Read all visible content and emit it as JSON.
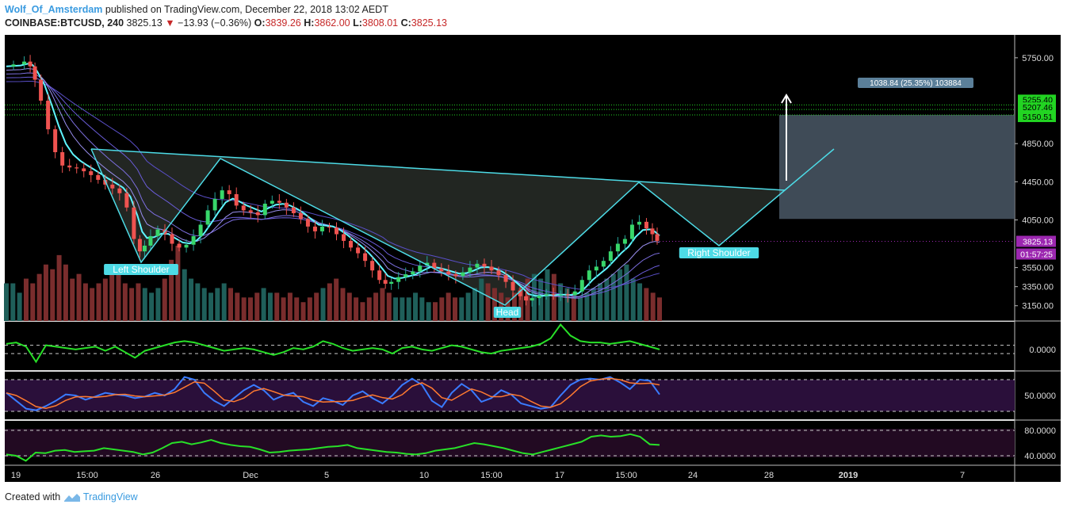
{
  "header": {
    "author": "Wolf_Of_Amsterdam",
    "published_text": "published on TradingView.com, December 22, 2018 13:02 AEDT",
    "symbol": "COINBASE:BTCUSD",
    "interval": "240",
    "last": "3825.13",
    "change": "−13.93 (−0.36%)",
    "open_label": "O:",
    "open": "3839.26",
    "high_label": "H:",
    "high": "3862.00",
    "low_label": "L:",
    "low": "3808.01",
    "close_label": "C:",
    "close": "3825.13"
  },
  "footer": {
    "created_with": "Created with",
    "brand": "TradingView"
  },
  "colors": {
    "up": "#26a69a",
    "down": "#ef5350",
    "pattern": "#4ddbe6",
    "ema_fast": "#5ff5ff",
    "osc_line": "#28e028",
    "stoch_k": "#3a7bff",
    "stoch_d": "#ff7a30",
    "target_box": "#4a5866",
    "price_label": "#9c27b0",
    "level_label": "#22d422"
  },
  "chart_data": {
    "type": "candlestick",
    "title": "",
    "price_axis_ticks": [
      "5750.00",
      "4850.00",
      "4450.00",
      "4050.00",
      "3550.00",
      "3350.00",
      "3150.00"
    ],
    "time_axis_ticks": [
      "19",
      "15:00",
      "26",
      "Dec",
      "5",
      "10",
      "15:00",
      "17",
      "15:00",
      "24",
      "28",
      "2019",
      "7"
    ],
    "ylim": [
      2990,
      5990
    ],
    "price_line": {
      "value": 3825.13,
      "label": "3825.13",
      "countdown": "01:57:25"
    },
    "levels": [
      {
        "value": 5255.4,
        "label": "5255.40"
      },
      {
        "value": 5207.46,
        "label": "5207.46"
      },
      {
        "value": 5150.51,
        "label": "5150.51"
      }
    ],
    "projection_label": "1038.84 (25.35%) 103884",
    "pattern_labels": [
      "Left Shoulder",
      "Head",
      "Right Shoulder"
    ],
    "path_points": [
      [
        0,
        5660
      ],
      [
        6,
        5680
      ],
      [
        9,
        5710
      ],
      [
        11,
        5660
      ],
      [
        13,
        5520
      ],
      [
        16,
        5300
      ],
      [
        19,
        5000
      ],
      [
        22,
        4760
      ],
      [
        25,
        4620
      ],
      [
        28,
        4600
      ],
      [
        31,
        4590
      ],
      [
        34,
        4560
      ],
      [
        37,
        4520
      ],
      [
        40,
        4470
      ],
      [
        43,
        4420
      ],
      [
        46,
        4380
      ],
      [
        49,
        4330
      ],
      [
        52,
        4180
      ],
      [
        55,
        3850
      ],
      [
        57,
        3720
      ],
      [
        59,
        3780
      ],
      [
        62,
        3880
      ],
      [
        65,
        3950
      ],
      [
        68,
        3900
      ],
      [
        71,
        3800
      ],
      [
        74,
        3760
      ],
      [
        77,
        3790
      ],
      [
        80,
        3880
      ],
      [
        83,
        4000
      ],
      [
        86,
        4150
      ],
      [
        89,
        4270
      ],
      [
        92,
        4360
      ],
      [
        95,
        4320
      ],
      [
        98,
        4200
      ],
      [
        101,
        4150
      ],
      [
        104,
        4130
      ],
      [
        107,
        4100
      ],
      [
        110,
        4220
      ],
      [
        113,
        4250
      ],
      [
        116,
        4230
      ],
      [
        119,
        4180
      ],
      [
        122,
        4120
      ],
      [
        125,
        4060
      ],
      [
        128,
        3980
      ],
      [
        131,
        3930
      ],
      [
        134,
        3980
      ],
      [
        137,
        3970
      ],
      [
        140,
        3900
      ],
      [
        143,
        3830
      ],
      [
        146,
        3760
      ],
      [
        149,
        3700
      ],
      [
        152,
        3620
      ],
      [
        155,
        3520
      ],
      [
        158,
        3420
      ],
      [
        160,
        3380
      ],
      [
        163,
        3400
      ],
      [
        166,
        3450
      ],
      [
        169,
        3480
      ],
      [
        172,
        3510
      ],
      [
        175,
        3570
      ],
      [
        178,
        3600
      ],
      [
        181,
        3540
      ],
      [
        184,
        3510
      ],
      [
        187,
        3480
      ],
      [
        190,
        3460
      ],
      [
        193,
        3500
      ],
      [
        196,
        3550
      ],
      [
        199,
        3590
      ],
      [
        202,
        3560
      ],
      [
        205,
        3520
      ],
      [
        208,
        3470
      ],
      [
        211,
        3400
      ],
      [
        214,
        3310
      ],
      [
        217,
        3250
      ],
      [
        219,
        3205
      ],
      [
        222,
        3230
      ],
      [
        225,
        3255
      ],
      [
        228,
        3270
      ],
      [
        231,
        3265
      ],
      [
        234,
        3270
      ],
      [
        237,
        3260
      ],
      [
        240,
        3300
      ],
      [
        243,
        3420
      ],
      [
        246,
        3520
      ],
      [
        249,
        3560
      ],
      [
        252,
        3620
      ],
      [
        255,
        3720
      ],
      [
        258,
        3800
      ],
      [
        261,
        3850
      ],
      [
        264,
        4000
      ],
      [
        267,
        4030
      ],
      [
        270,
        3960
      ],
      [
        272,
        3900
      ],
      [
        274,
        3830
      ]
    ],
    "volume": {
      "bars": 100,
      "values": [
        8,
        8,
        6,
        9,
        8,
        10,
        12,
        11,
        14,
        12,
        9,
        10,
        8,
        7,
        8,
        9,
        11,
        10,
        8,
        7,
        8,
        7,
        6,
        7,
        9,
        13,
        16,
        11,
        9,
        8,
        7,
        6,
        7,
        8,
        7,
        6,
        5,
        5,
        6,
        7,
        6,
        6,
        5,
        6,
        5,
        4,
        5,
        6,
        7,
        8,
        9,
        7,
        6,
        5,
        4,
        5,
        6,
        7,
        6,
        5,
        5,
        5,
        6,
        5,
        4,
        4,
        5,
        6,
        5,
        5,
        6,
        7,
        9,
        8,
        7,
        6,
        5,
        6,
        7,
        9,
        10,
        9,
        11,
        10,
        8,
        7,
        6,
        5,
        6,
        7,
        8,
        9,
        10,
        11,
        12,
        9,
        8,
        7,
        6,
        5
      ]
    },
    "indicators": [
      {
        "name": "",
        "tick": "0.0000",
        "values": [
          0.4,
          0.5,
          0.2,
          -0.9,
          0.3,
          0.2,
          0.1,
          0.0,
          0.1,
          0.2,
          -0.1,
          0.2,
          -0.2,
          -0.6,
          -0.1,
          0.1,
          0.3,
          0.5,
          0.6,
          0.5,
          0.3,
          0.1,
          -0.1,
          0.0,
          0.1,
          0.0,
          -0.2,
          -0.4,
          -0.2,
          0.1,
          0.0,
          0.2,
          0.6,
          0.4,
          0.1,
          -0.1,
          0.0,
          0.1,
          0.0,
          -0.3,
          0.1,
          0.2,
          0.0,
          -0.1,
          0.1,
          0.3,
          0.2,
          0.0,
          -0.2,
          -0.3,
          -0.1,
          0.0,
          0.1,
          0.2,
          0.4,
          0.8,
          1.8,
          1.0,
          0.6,
          0.5,
          0.5,
          0.4,
          0.5,
          0.6,
          0.4,
          0.2,
          0.0
        ]
      },
      {
        "name": "",
        "tick": "50.0000",
        "values": [
          55,
          40,
          25,
          22,
          30,
          40,
          52,
          50,
          42,
          48,
          55,
          52,
          50,
          45,
          48,
          55,
          50,
          62,
          85,
          80,
          55,
          40,
          30,
          45,
          60,
          70,
          60,
          42,
          50,
          55,
          38,
          30,
          45,
          40,
          32,
          50,
          58,
          45,
          35,
          50,
          70,
          82,
          70,
          40,
          28,
          55,
          72,
          60,
          38,
          45,
          60,
          52,
          35,
          30,
          25,
          28,
          50,
          70,
          80,
          82,
          80,
          85,
          75,
          62,
          80,
          78,
          52
        ]
      },
      {
        "name": "",
        "tick_hi": "80.0000",
        "tick_lo": "40.0000",
        "values": [
          42,
          40,
          32,
          45,
          44,
          48,
          49,
          46,
          47,
          48,
          52,
          50,
          48,
          46,
          42,
          45,
          52,
          60,
          62,
          58,
          61,
          65,
          60,
          57,
          55,
          54,
          50,
          45,
          46,
          48,
          49,
          50,
          52,
          54,
          55,
          57,
          52,
          50,
          48,
          46,
          45,
          43,
          42,
          44,
          48,
          50,
          52,
          56,
          60,
          58,
          55,
          52,
          48,
          44,
          42,
          46,
          50,
          54,
          58,
          62,
          70,
          72,
          70,
          71,
          74,
          70,
          58,
          57
        ]
      }
    ]
  }
}
